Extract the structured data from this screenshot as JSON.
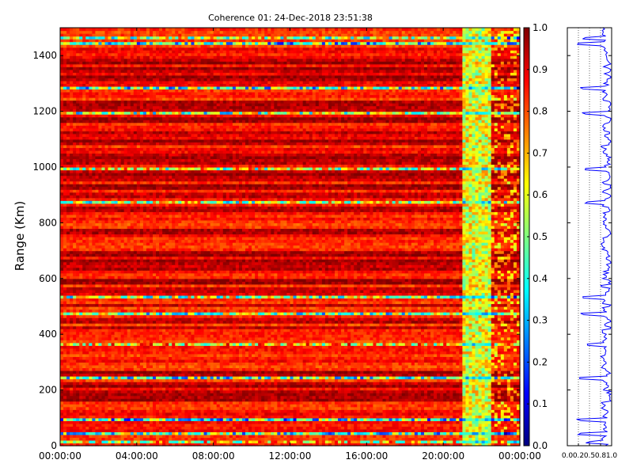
{
  "chart_data": [
    {
      "type": "heatmap",
      "title": "Coherence 01: 24-Dec-2018 23:51:38",
      "ylabel": "Range (Km)",
      "xlabel": "",
      "x_tick_labels": [
        "00:00:00",
        "04:00:00",
        "08:00:00",
        "12:00:00",
        "16:00:00",
        "20:00:00",
        "00:00:00"
      ],
      "x_range_hours": [
        0,
        24
      ],
      "y_ticks": [
        0,
        200,
        400,
        600,
        800,
        1000,
        1200,
        1400
      ],
      "ylim": [
        0,
        1500
      ],
      "colormap": "jet",
      "colorbar": {
        "ticks": [
          "0.0",
          "0.1",
          "0.2",
          "0.3",
          "0.4",
          "0.5",
          "0.6",
          "0.7",
          "0.8",
          "0.9",
          "1.0"
        ],
        "range": [
          0,
          1
        ]
      },
      "regime_change_hours": [
        21,
        22.5
      ],
      "features": {
        "low_coherence_ranges_km": [
          15,
          45,
          95,
          160,
          210,
          245,
          290,
          330,
          365,
          475,
          535,
          600,
          730,
          800,
          875,
          995,
          1070,
          1110,
          1140,
          1195,
          1260,
          1285,
          1330,
          1400,
          1420,
          1445,
          1465
        ],
        "high_coherence_ranges_km": [
          170,
          190,
          220,
          260,
          425,
          450,
          505,
          560,
          590,
          640,
          660,
          690,
          770,
          850,
          900,
          930,
          960,
          980,
          1020,
          1040,
          1090,
          1125,
          1170,
          1210,
          1230,
          1320,
          1350,
          1380
        ]
      }
    },
    {
      "type": "line",
      "title": "",
      "x_tick_labels": [
        "0.0",
        "0.2",
        "0.5",
        "0.8",
        "1.0"
      ],
      "xlim": [
        0,
        1
      ],
      "ylim": [
        0,
        1500
      ],
      "grid": "x-dotted",
      "line_color": "#0000ff"
    }
  ]
}
